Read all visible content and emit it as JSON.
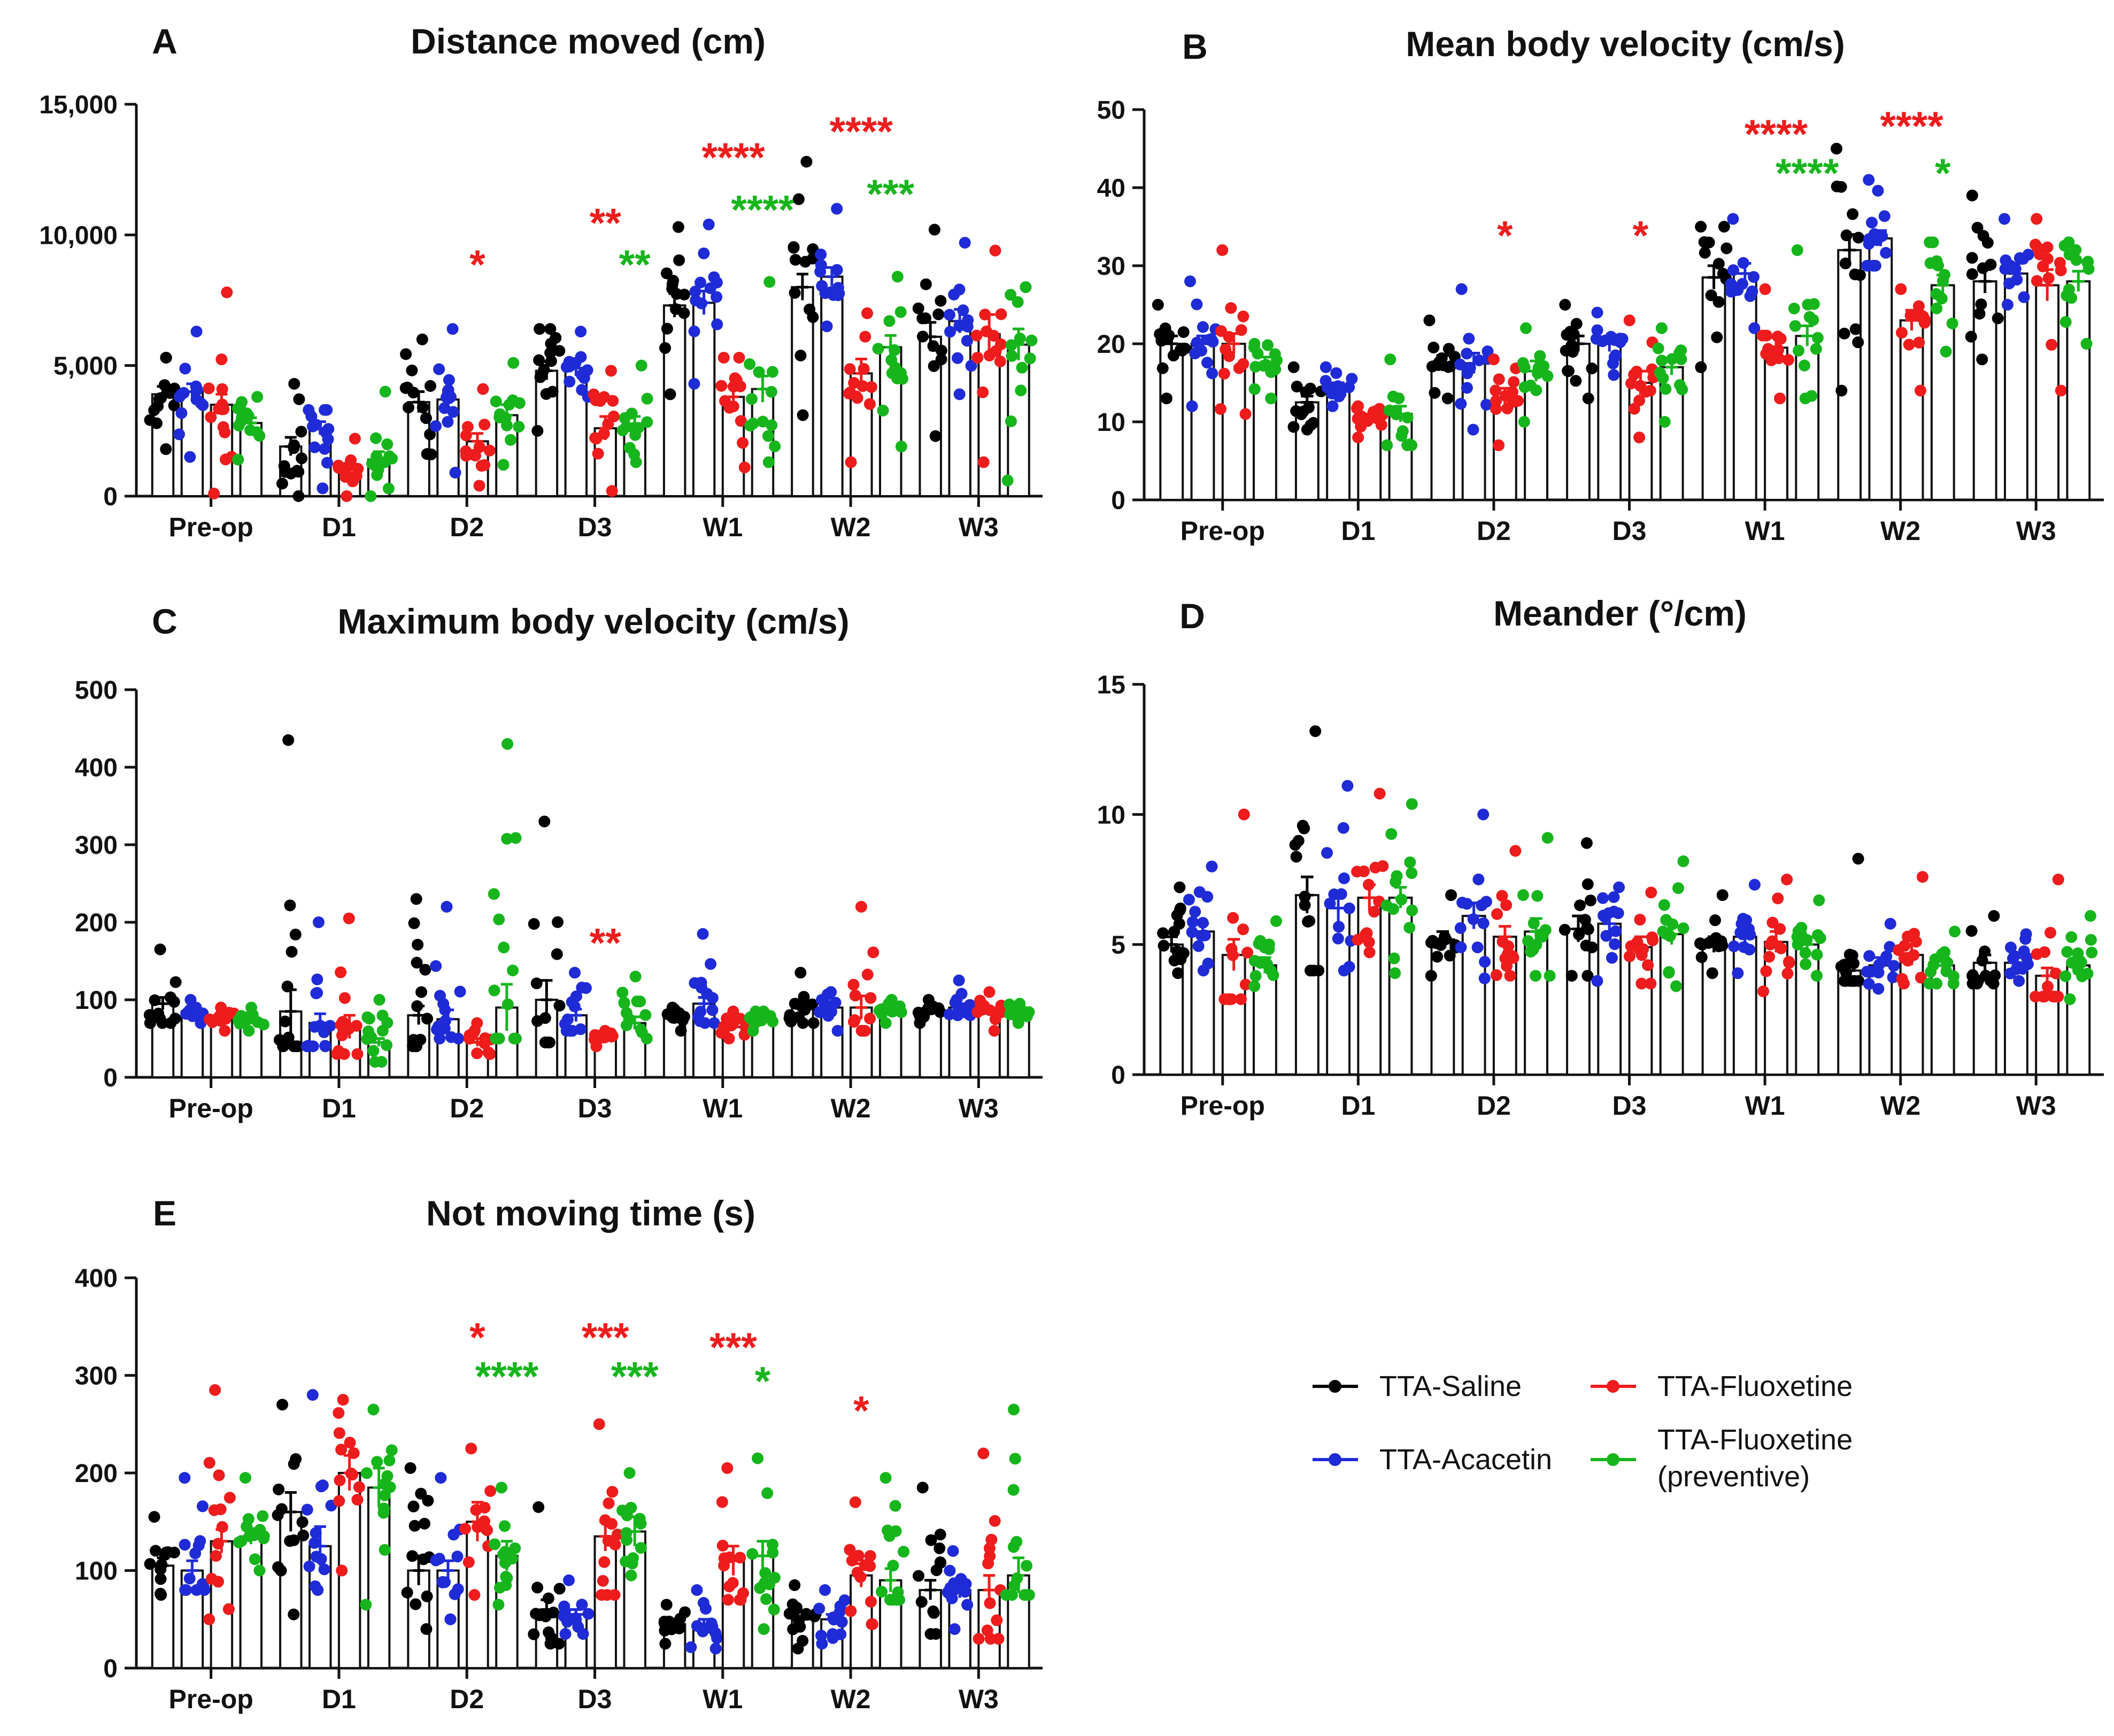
{
  "colors": {
    "TTA-Saline": "#000000",
    "TTA-Acacetin": "#1f2bd6",
    "TTA-Fluoxetine": "#ee1c1c",
    "TTA-Fluoxetine (preventive)": "#16b51c"
  },
  "groups": [
    "TTA-Saline",
    "TTA-Acacetin",
    "TTA-Fluoxetine",
    "TTA-Fluoxetine (preventive)"
  ],
  "legend": {
    "items": [
      {
        "group": "TTA-Saline",
        "label": "TTA-Saline"
      },
      {
        "group": "TTA-Fluoxetine",
        "label": "TTA-Fluoxetine"
      },
      {
        "group": "TTA-Acacetin",
        "label": "TTA-Acacetin"
      },
      {
        "group": "TTA-Fluoxetine (preventive)",
        "label": "TTA-Fluoxetine",
        "label2": "(preventive)"
      }
    ]
  },
  "chart_data": [
    {
      "type": "bar",
      "panel": "A",
      "title": "Distance moved (cm)",
      "categories": [
        "Pre-op",
        "D1",
        "D2",
        "D3",
        "W1",
        "W2",
        "W3"
      ],
      "ylim": [
        0,
        15000
      ],
      "yticks": [
        0,
        5000,
        10000,
        15000
      ],
      "ytick_labels": [
        "0",
        "5,000",
        "10,000",
        "15,000"
      ],
      "series": [
        {
          "name": "TTA-Saline",
          "mean": [
            3900,
            1900,
            3600,
            4800,
            7300,
            8000,
            6100
          ],
          "sem": [
            300,
            350,
            400,
            350,
            450,
            500,
            550
          ],
          "range": [
            1800,
            5300,
            0,
            4300,
            1600,
            6000,
            2500,
            6400,
            3900,
            10300,
            3100,
            12800,
            2300,
            10200
          ]
        },
        {
          "name": "TTA-Acacetin",
          "mean": [
            4000,
            2600,
            3700,
            4900,
            7400,
            8400,
            6700
          ],
          "sem": [
            300,
            250,
            350,
            300,
            450,
            350,
            450
          ],
          "range": [
            1500,
            6300,
            300,
            3300,
            900,
            6400,
            3800,
            6300,
            4300,
            10400,
            6500,
            11000,
            3900,
            9700
          ]
        },
        {
          "name": "TTA-Fluoxetine",
          "mean": [
            3500,
            1000,
            2100,
            2600,
            3800,
            4700,
            6200
          ],
          "sem": [
            400,
            250,
            300,
            450,
            400,
            550,
            750
          ],
          "range": [
            100,
            7800,
            0,
            2200,
            400,
            4100,
            200,
            4800,
            1100,
            5300,
            1300,
            7000,
            1300,
            9400
          ]
        },
        {
          "name": "TTA-Fluoxetine (preventive)",
          "mean": [
            2800,
            1400,
            3100,
            2700,
            4100,
            5700,
            5800
          ],
          "sem": [
            200,
            300,
            400,
            350,
            500,
            450,
            600
          ],
          "range": [
            1400,
            3800,
            0,
            4000,
            1200,
            5100,
            1300,
            5000,
            1300,
            8200,
            1900,
            8400,
            600,
            8000
          ]
        }
      ],
      "annotations": [
        {
          "category": "D2",
          "text": "*",
          "color": "red",
          "y": 8900
        },
        {
          "category": "D3",
          "text": "**",
          "color": "red",
          "y": 10500
        },
        {
          "category": "D3",
          "text": "**",
          "color": "green",
          "y": 8900
        },
        {
          "category": "W1",
          "text": "****",
          "color": "red",
          "y": 13000
        },
        {
          "category": "W1",
          "text": "****",
          "color": "green",
          "y": 11000
        },
        {
          "category": "W2",
          "text": "****",
          "color": "red",
          "y": 14000
        },
        {
          "category": "W2",
          "text": "***",
          "color": "green",
          "y": 11600
        }
      ]
    },
    {
      "type": "bar",
      "panel": "B",
      "title": "Mean body velocity (cm/s)",
      "categories": [
        "Pre-op",
        "D1",
        "D2",
        "D3",
        "W1",
        "W2",
        "W3"
      ],
      "ylim": [
        0,
        50
      ],
      "yticks": [
        0,
        10,
        20,
        30,
        40,
        50
      ],
      "ytick_labels": [
        "0",
        "10",
        "20",
        "30",
        "40",
        "50"
      ],
      "series": [
        {
          "name": "TTA-Saline",
          "mean": [
            20,
            12.5,
            17.5,
            20,
            28.5,
            32,
            28
          ],
          "sem": [
            1.0,
            0.8,
            1.0,
            1.0,
            1.5,
            2.0,
            1.5
          ],
          "range": [
            13,
            25,
            9,
            17,
            13,
            23,
            13,
            25,
            17,
            35,
            14,
            45,
            18,
            39
          ]
        },
        {
          "name": "TTA-Acacetin",
          "mean": [
            20,
            14.5,
            17.5,
            20,
            29,
            33.5,
            29
          ],
          "sem": [
            1.0,
            0.5,
            1.3,
            1.0,
            1.3,
            1.0,
            1.3
          ],
          "range": [
            12,
            28,
            12,
            17,
            9,
            27,
            16,
            24,
            22,
            36,
            30,
            41,
            25,
            36
          ]
        },
        {
          "name": "TTA-Fluoxetine",
          "mean": [
            20,
            10.5,
            13,
            15,
            19.5,
            23,
            27.5
          ],
          "sem": [
            1.3,
            0.5,
            1.3,
            1.5,
            1.3,
            1.3,
            2.0
          ],
          "range": [
            11,
            32,
            8,
            12,
            7,
            18,
            8,
            23,
            13,
            27,
            14,
            27,
            14,
            36
          ]
        },
        {
          "name": "TTA-Fluoxetine (preventive)",
          "mean": [
            17.5,
            11,
            16.5,
            17,
            21,
            27.5,
            28
          ],
          "sem": [
            0.8,
            1.0,
            1.3,
            1.0,
            1.3,
            1.3,
            1.3
          ],
          "range": [
            13,
            20,
            7,
            18,
            10,
            22,
            10,
            22,
            13,
            32,
            19,
            33,
            20,
            33
          ]
        }
      ],
      "annotations": [
        {
          "category": "D2",
          "text": "*",
          "color": "red",
          "y": 34
        },
        {
          "category": "D3",
          "text": "*",
          "color": "red",
          "y": 34
        },
        {
          "category": "W1",
          "text": "****",
          "color": "red",
          "y": 47
        },
        {
          "category": "W1",
          "text": "****",
          "color": "green",
          "y": 42
        },
        {
          "category": "W2",
          "text": "****",
          "color": "red",
          "y": 48
        },
        {
          "category": "W2",
          "text": "*",
          "color": "green",
          "y": 42
        }
      ]
    },
    {
      "type": "bar",
      "panel": "C",
      "title": "Maximum body velocity (cm/s)",
      "categories": [
        "Pre-op",
        "D1",
        "D2",
        "D3",
        "W1",
        "W2",
        "W3"
      ],
      "ylim": [
        0,
        500
      ],
      "yticks": [
        0,
        100,
        200,
        300,
        400,
        500
      ],
      "ytick_labels": [
        "0",
        "100",
        "200",
        "300",
        "400",
        "500"
      ],
      "series": [
        {
          "name": "TTA-Saline",
          "mean": [
            95,
            85,
            80,
            100,
            80,
            90,
            85
          ],
          "sem": [
            8,
            28,
            12,
            25,
            5,
            5,
            4
          ],
          "range": [
            70,
            165,
            40,
            435,
            40,
            230,
            45,
            330,
            60,
            90,
            70,
            135,
            70,
            100
          ]
        },
        {
          "name": "TTA-Acacetin",
          "mean": [
            85,
            70,
            75,
            80,
            95,
            90,
            90
          ],
          "sem": [
            5,
            12,
            12,
            8,
            8,
            5,
            5
          ],
          "range": [
            70,
            100,
            40,
            200,
            50,
            220,
            60,
            135,
            70,
            185,
            60,
            110,
            80,
            125
          ]
        },
        {
          "name": "TTA-Fluoxetine",
          "mean": [
            75,
            65,
            45,
            50,
            65,
            90,
            85
          ],
          "sem": [
            4,
            15,
            5,
            4,
            4,
            15,
            5
          ],
          "range": [
            60,
            90,
            30,
            205,
            30,
            70,
            40,
            60,
            50,
            85,
            60,
            220,
            60,
            110
          ]
        },
        {
          "name": "TTA-Fluoxetine (preventive)",
          "mean": [
            75,
            45,
            90,
            70,
            75,
            85,
            85
          ],
          "sem": [
            4,
            5,
            30,
            8,
            4,
            4,
            3
          ],
          "range": [
            60,
            90,
            20,
            100,
            50,
            430,
            50,
            130,
            60,
            85,
            70,
            100,
            70,
            95
          ]
        }
      ],
      "annotations": [
        {
          "category": "D3",
          "text": "**",
          "color": "red",
          "y": 175
        }
      ]
    },
    {
      "type": "bar",
      "panel": "D",
      "title": "Meander (°/cm)",
      "categories": [
        "Pre-op",
        "D1",
        "D2",
        "D3",
        "W1",
        "W2",
        "W3"
      ],
      "ylim": [
        0,
        15
      ],
      "yticks": [
        0,
        5,
        10,
        15
      ],
      "ytick_labels": [
        "0",
        "5",
        "10",
        "15"
      ],
      "series": [
        {
          "name": "TTA-Saline",
          "mean": [
            5.0,
            6.9,
            5.2,
            5.6,
            5.0,
            4.0,
            4.3
          ],
          "sem": [
            0.3,
            0.7,
            0.3,
            0.5,
            0.3,
            0.4,
            0.3
          ],
          "range": [
            3.9,
            7.2,
            4.0,
            13.2,
            3.8,
            6.9,
            3.8,
            8.9,
            3.9,
            6.9,
            3.6,
            8.3,
            3.5,
            6.1
          ]
        },
        {
          "name": "TTA-Acacetin",
          "mean": [
            5.5,
            6.4,
            6.1,
            5.8,
            5.3,
            4.2,
            4.3
          ],
          "sem": [
            0.3,
            0.6,
            0.5,
            0.3,
            0.3,
            0.3,
            0.2
          ],
          "range": [
            4.0,
            8.0,
            4.0,
            11.1,
            3.7,
            10.0,
            3.6,
            7.2,
            3.9,
            7.3,
            3.3,
            5.8,
            3.6,
            5.4
          ]
        },
        {
          "name": "TTA-Fluoxetine",
          "mean": [
            4.6,
            6.8,
            5.3,
            4.9,
            5.1,
            4.6,
            3.8
          ],
          "sem": [
            0.6,
            0.5,
            0.4,
            0.4,
            0.4,
            0.4,
            0.3
          ],
          "range": [
            2.9,
            10.0,
            4.7,
            10.8,
            3.8,
            8.6,
            3.5,
            7.0,
            3.2,
            7.5,
            3.5,
            7.6,
            3.0,
            7.5
          ]
        },
        {
          "name": "TTA-Fluoxetine (preventive)",
          "mean": [
            4.2,
            6.8,
            5.5,
            5.4,
            5.0,
            4.2,
            4.2
          ],
          "sem": [
            0.3,
            0.4,
            0.5,
            0.4,
            0.3,
            0.2,
            0.3
          ],
          "range": [
            3.4,
            5.9,
            3.9,
            10.4,
            3.8,
            9.1,
            3.4,
            8.2,
            3.8,
            6.7,
            3.5,
            5.5,
            2.9,
            6.1
          ]
        }
      ],
      "annotations": []
    },
    {
      "type": "bar",
      "panel": "E",
      "title": "Not moving time (s)",
      "categories": [
        "Pre-op",
        "D1",
        "D2",
        "D3",
        "W1",
        "W2",
        "W3"
      ],
      "ylim": [
        0,
        400
      ],
      "yticks": [
        0,
        100,
        200,
        300,
        400
      ],
      "ytick_labels": [
        "0",
        "100",
        "200",
        "300",
        "400"
      ],
      "series": [
        {
          "name": "TTA-Saline",
          "mean": [
            105,
            160,
            100,
            60,
            45,
            50,
            80
          ],
          "sem": [
            8,
            20,
            15,
            10,
            5,
            8,
            10
          ],
          "range": [
            75,
            155,
            55,
            270,
            40,
            205,
            25,
            165,
            25,
            65,
            20,
            85,
            35,
            185
          ]
        },
        {
          "name": "TTA-Acacetin",
          "mean": [
            100,
            125,
            100,
            55,
            45,
            50,
            80
          ],
          "sem": [
            10,
            20,
            10,
            5,
            5,
            5,
            8
          ],
          "range": [
            80,
            195,
            80,
            280,
            50,
            195,
            35,
            90,
            20,
            80,
            25,
            80,
            40,
            120
          ]
        },
        {
          "name": "TTA-Fluoxetine",
          "mean": [
            130,
            200,
            150,
            135,
            110,
            95,
            80
          ],
          "sem": [
            12,
            18,
            20,
            15,
            15,
            12,
            15
          ],
          "range": [
            50,
            285,
            100,
            275,
            75,
            225,
            75,
            250,
            70,
            205,
            45,
            170,
            30,
            220
          ]
        },
        {
          "name": "TTA-Fluoxetine (preventive)",
          "mean": [
            135,
            185,
            115,
            140,
            115,
            90,
            95
          ],
          "sem": [
            8,
            20,
            15,
            15,
            15,
            12,
            18
          ],
          "range": [
            100,
            195,
            65,
            265,
            65,
            185,
            95,
            200,
            40,
            215,
            70,
            195,
            75,
            265
          ]
        }
      ],
      "annotations": [
        {
          "category": "D2",
          "text": "*",
          "color": "red",
          "y": 340
        },
        {
          "category": "D2",
          "text": "****",
          "color": "green",
          "y": 300
        },
        {
          "category": "D3",
          "text": "***",
          "color": "red",
          "y": 340
        },
        {
          "category": "D3",
          "text": "***",
          "color": "green",
          "y": 300
        },
        {
          "category": "W1",
          "text": "***",
          "color": "red",
          "y": 330
        },
        {
          "category": "W1",
          "text": "*",
          "color": "green",
          "y": 295
        },
        {
          "category": "W2",
          "text": "*",
          "color": "red",
          "y": 265
        }
      ]
    }
  ]
}
